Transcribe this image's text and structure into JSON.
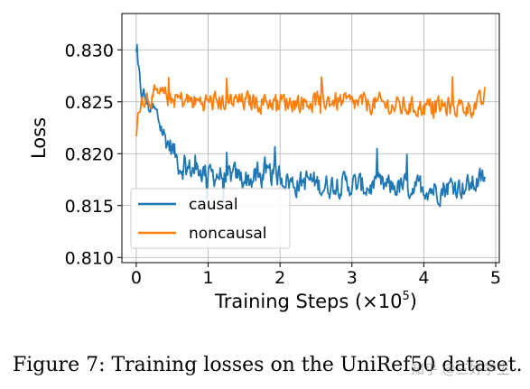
{
  "chart_data": {
    "type": "line",
    "xlabel": "Training Steps (×10",
    "xlabel_exponent": "5",
    "xlabel_close": ")",
    "ylabel": "Loss",
    "xlim": [
      -0.2,
      5.05
    ],
    "ylim": [
      0.8095,
      0.8335
    ],
    "x_ticks": [
      0,
      1,
      2,
      3,
      4,
      5
    ],
    "y_ticks": [
      0.81,
      0.815,
      0.82,
      0.825,
      0.83
    ],
    "x_tick_labels": [
      "0",
      "1",
      "2",
      "3",
      "4",
      "5"
    ],
    "y_tick_labels": [
      "0.810",
      "0.815",
      "0.820",
      "0.825",
      "0.830"
    ],
    "grid": true,
    "legend_position": "lower-left",
    "series": [
      {
        "name": "causal",
        "color": "#1f77b4",
        "x": [
          0,
          0.05,
          0.1,
          0.2,
          0.3,
          0.4,
          0.5,
          0.6,
          0.7,
          0.8,
          0.9,
          1.0,
          1.2,
          1.4,
          1.6,
          1.8,
          2.0,
          2.2,
          2.4,
          2.6,
          2.8,
          3.0,
          3.2,
          3.4,
          3.6,
          3.8,
          4.0,
          4.2,
          4.4,
          4.6,
          4.8,
          4.85
        ],
        "values": [
          0.8295,
          0.8265,
          0.8255,
          0.8245,
          0.8235,
          0.8215,
          0.8205,
          0.819,
          0.8185,
          0.8185,
          0.8185,
          0.818,
          0.818,
          0.8178,
          0.8175,
          0.8178,
          0.818,
          0.817,
          0.8175,
          0.8168,
          0.8172,
          0.817,
          0.8168,
          0.8168,
          0.8168,
          0.8168,
          0.8168,
          0.8165,
          0.817,
          0.8168,
          0.8175,
          0.8175
        ],
        "noise": 0.0018
      },
      {
        "name": "noncausal",
        "color": "#ff7f0e",
        "x": [
          0,
          0.05,
          0.1,
          0.2,
          0.3,
          0.4,
          0.5,
          0.6,
          0.8,
          1.0,
          1.2,
          1.4,
          1.6,
          1.8,
          2.0,
          2.2,
          2.4,
          2.6,
          2.8,
          3.0,
          3.2,
          3.4,
          3.6,
          3.8,
          4.0,
          4.2,
          4.4,
          4.6,
          4.8,
          4.85
        ],
        "values": [
          0.8215,
          0.825,
          0.8255,
          0.8255,
          0.8255,
          0.8255,
          0.8253,
          0.8252,
          0.825,
          0.825,
          0.825,
          0.825,
          0.825,
          0.825,
          0.825,
          0.825,
          0.825,
          0.8252,
          0.825,
          0.8248,
          0.8248,
          0.8248,
          0.8245,
          0.8245,
          0.8245,
          0.8245,
          0.8245,
          0.8245,
          0.8248,
          0.8255
        ],
        "noise": 0.0015
      }
    ]
  },
  "caption": "Figure 7: Training losses on the UniRef50 dataset.",
  "watermark": "知乎 @三好学生"
}
